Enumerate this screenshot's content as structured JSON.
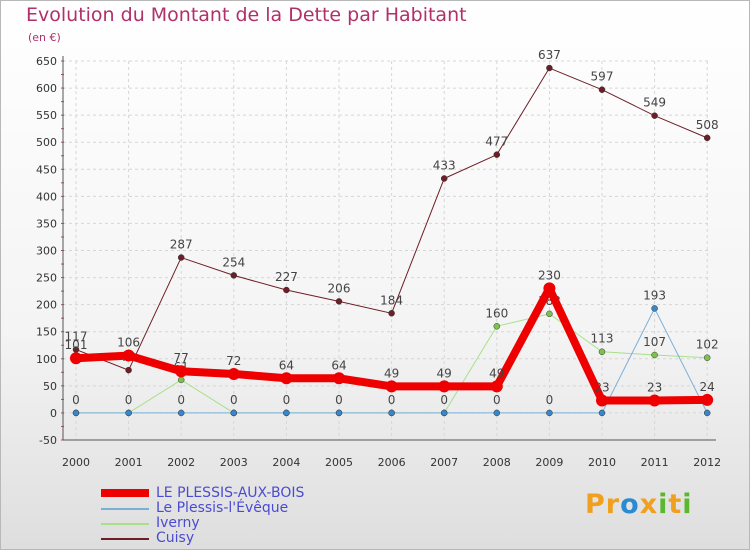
{
  "title": "Evolution du Montant de la Dette par Habitant",
  "subtitle": "(en €)",
  "logo": {
    "text": "Proxiti",
    "letters": [
      "P",
      "r",
      "o",
      "x",
      "i",
      "t",
      "i"
    ],
    "colors": [
      "#f0a01e",
      "#f0a01e",
      "#2a8ad2",
      "#f0a01e",
      "#59b82e",
      "#f0a01e",
      "#59b82e"
    ]
  },
  "chart_data": {
    "type": "line",
    "x": [
      "2000",
      "2001",
      "2002",
      "2003",
      "2004",
      "2005",
      "2006",
      "2007",
      "2008",
      "2009",
      "2010",
      "2011",
      "2012"
    ],
    "ylim": [
      -50,
      650
    ],
    "yticks": [
      -50,
      0,
      50,
      100,
      150,
      200,
      250,
      300,
      350,
      400,
      450,
      500,
      550,
      600,
      650
    ],
    "ytick_labels": [
      "-50",
      "0",
      "50",
      "100",
      "150",
      "200",
      "250",
      "300",
      "350",
      "400",
      "450",
      "500",
      "550",
      "600",
      "650"
    ],
    "grid": true,
    "legend_position": "bottom-left",
    "series": [
      {
        "name": "Cuisy",
        "color": "#6e1e26",
        "marker": "#6e1e26",
        "width": 1,
        "values": [
          117,
          79,
          287,
          254,
          227,
          206,
          184,
          433,
          477,
          637,
          597,
          549,
          508
        ],
        "labels": [
          "117",
          "79",
          "287",
          "254",
          "227",
          "206",
          "184",
          "433",
          "477",
          "637",
          "597",
          "549",
          "508"
        ]
      },
      {
        "name": "Iverny",
        "color": "#a8e08a",
        "marker": "#7cc34a",
        "width": 1,
        "values": [
          0,
          0,
          61,
          0,
          0,
          0,
          0,
          0,
          160,
          183,
          113,
          107,
          102
        ],
        "labels": [
          "",
          "",
          "61",
          "",
          "",
          "",
          "",
          "",
          "160",
          "183",
          "113",
          "107",
          "102"
        ]
      },
      {
        "name": "Le Plessis-l'Évêque",
        "color": "#7ab0d8",
        "marker": "#3a86c8",
        "width": 1,
        "values": [
          0,
          0,
          0,
          0,
          0,
          0,
          0,
          0,
          0,
          0,
          0,
          193,
          0
        ],
        "labels": [
          "",
          "",
          "0",
          "",
          "",
          "",
          "",
          "",
          "0",
          "0",
          "",
          "193",
          ""
        ]
      },
      {
        "name": "LE PLESSIS-AUX-BOIS",
        "color": "#ee0000",
        "marker": "#ee0000",
        "width": 8,
        "values": [
          101,
          106,
          77,
          72,
          64,
          64,
          49,
          49,
          49,
          230,
          23,
          23,
          24
        ],
        "labels": [
          "101",
          "106",
          "77",
          "72",
          "64",
          "64",
          "49",
          "49",
          "49",
          "230",
          "23",
          "23",
          "24"
        ]
      }
    ],
    "plessis_aux_bois_zero_labels": [
      "0",
      "0",
      "0",
      "0",
      "0",
      "0",
      "0"
    ]
  }
}
